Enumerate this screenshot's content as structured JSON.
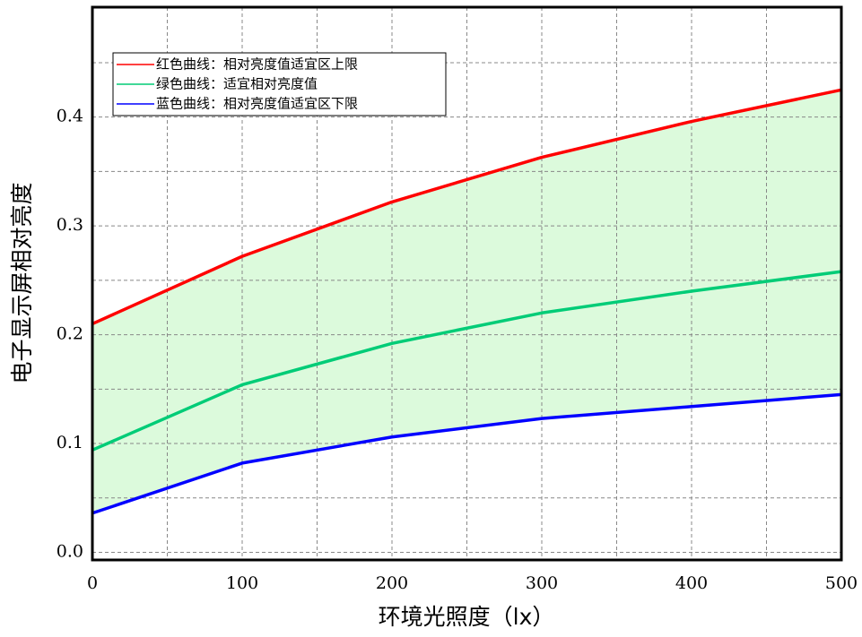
{
  "chart_data": {
    "type": "line",
    "x_label": "环境光照度（lx）",
    "y_label": "电子显示屏相对亮度",
    "x": [
      0,
      100,
      200,
      300,
      400,
      500
    ],
    "series": [
      {
        "name": "红色曲线：相对亮度值适宜区上限",
        "color": "#ff0000",
        "values": [
          0.21,
          0.272,
          0.322,
          0.363,
          0.396,
          0.425
        ]
      },
      {
        "name": "绿色曲线：适宜相对亮度值",
        "color": "#00cc77",
        "values": [
          0.094,
          0.154,
          0.192,
          0.22,
          0.24,
          0.258
        ]
      },
      {
        "name": "蓝色曲线：相对亮度值适宜区下限",
        "color": "#0000ff",
        "values": [
          0.036,
          0.082,
          0.106,
          0.123,
          0.134,
          0.145
        ]
      }
    ],
    "band_color": "#dcfadc",
    "xlim": [
      0,
      500
    ],
    "ylim": [
      -0.007,
      0.501
    ],
    "xticks": [
      0,
      100,
      200,
      300,
      400,
      500
    ],
    "yticks": [
      {
        "value": 0,
        "label": "0.0"
      },
      0.1,
      0.2,
      0.3,
      0.4
    ],
    "minor_xticks": [
      50,
      150,
      250,
      350,
      450
    ],
    "minor_yticks": [
      0.05,
      0.15,
      0.25,
      0.35,
      0.45
    ],
    "grid": true,
    "legend": "upper left"
  }
}
